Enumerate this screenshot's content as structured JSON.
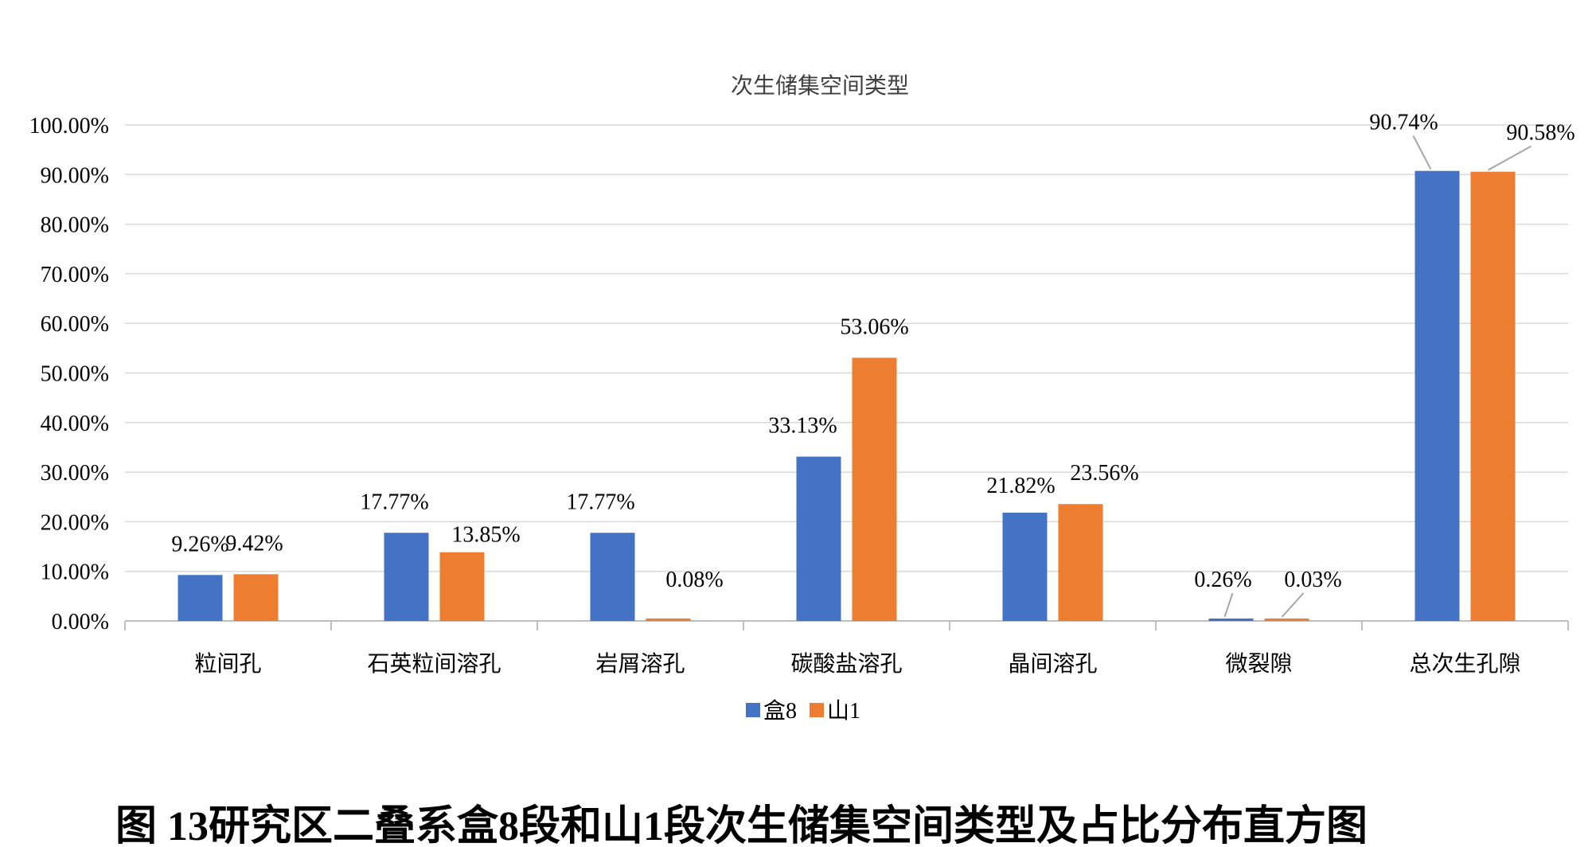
{
  "chart_data": {
    "type": "bar",
    "title": "次生储集空间类型",
    "categories": [
      "粒间孔",
      "石英粒间溶孔",
      "岩屑溶孔",
      "碳酸盐溶孔",
      "晶间溶孔",
      "微裂隙",
      "总次生孔隙"
    ],
    "series": [
      {
        "name": "盒8",
        "color": "#4472C4",
        "values": [
          9.26,
          17.77,
          17.77,
          33.13,
          21.82,
          0.26,
          90.74
        ],
        "labels": [
          "9.26%",
          "17.77%",
          "17.77%",
          "33.13%",
          "21.82%",
          "0.26%",
          "90.74%"
        ]
      },
      {
        "name": "山1",
        "color": "#ED7D31",
        "values": [
          9.42,
          13.85,
          0.08,
          53.06,
          23.56,
          0.03,
          90.58
        ],
        "labels": [
          "9.42%",
          "13.85%",
          "0.08%",
          "53.06%",
          "23.56%",
          "0.03%",
          "90.58%"
        ]
      }
    ],
    "ylim": [
      0,
      100
    ],
    "yticks": [
      "0.00%",
      "10.00%",
      "20.00%",
      "30.00%",
      "40.00%",
      "50.00%",
      "60.00%",
      "70.00%",
      "80.00%",
      "90.00%",
      "100.00%"
    ],
    "xlabel": "",
    "ylabel": "",
    "grid": true,
    "legend_position": "bottom"
  },
  "caption": "图 13研究区二叠系盒8段和山1段次生储集空间类型及占比分布直方图"
}
